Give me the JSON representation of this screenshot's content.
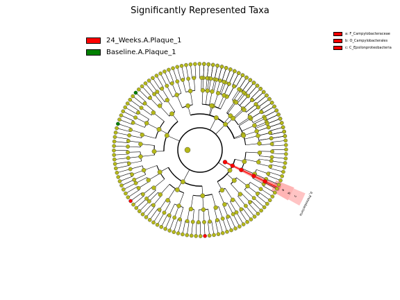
{
  "title": "Significantly Represented Taxa",
  "legend": [
    {
      "label": "24_Weeks.A.Plaque_1",
      "color": "#ff0000"
    },
    {
      "label": "Baseline.A.Plaque_1",
      "color": "#008000"
    }
  ],
  "side_legend": [
    {
      "label": "a: F_Campylobacteraceae",
      "color": "#ff0000"
    },
    {
      "label": "b: O_Campylobacterales",
      "color": "#ff0000"
    },
    {
      "label": "c: C_Epsilonproteobacteria",
      "color": "#ff0000"
    }
  ],
  "clade_labels": [
    "a",
    "b",
    "c"
  ],
  "clade_name": "p_Proteobacteria",
  "colors": {
    "node_default": "#b5b81a",
    "enriched_24w": "#ff0000",
    "enriched_baseline": "#008000",
    "edge": "#000000",
    "highlight": "#ff6b6b"
  }
}
